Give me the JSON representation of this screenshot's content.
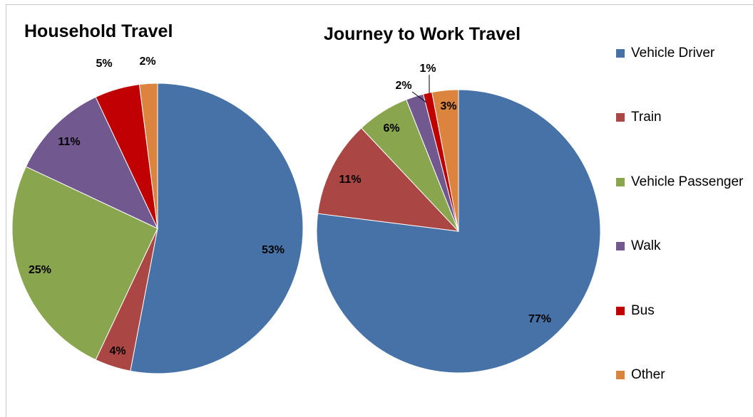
{
  "chart_data": [
    {
      "type": "pie",
      "title": "Household Travel",
      "categories": [
        "Vehicle Driver",
        "Train",
        "Vehicle Passenger",
        "Walk",
        "Bus",
        "Other"
      ],
      "values": [
        53,
        4,
        25,
        11,
        5,
        2
      ],
      "data_labels": [
        "53%",
        "4%",
        "25%",
        "11%",
        "5%",
        "2%"
      ]
    },
    {
      "type": "pie",
      "title": "Journey to Work Travel",
      "categories": [
        "Vehicle Driver",
        "Train",
        "Vehicle Passenger",
        "Walk",
        "Bus",
        "Other"
      ],
      "values": [
        77,
        11,
        6,
        2,
        1,
        3
      ],
      "data_labels": [
        "77%",
        "11%",
        "6%",
        "2%",
        "1%",
        "3%"
      ]
    }
  ],
  "legend": {
    "placement": "right",
    "items": [
      {
        "label": "Vehicle Driver",
        "color": "#4672A8"
      },
      {
        "label": "Train",
        "color": "#AA4643"
      },
      {
        "label": "Vehicle Passenger",
        "color": "#89A54E"
      },
      {
        "label": "Walk",
        "color": "#71588F"
      },
      {
        "label": "Bus",
        "color": "#C00000"
      },
      {
        "label": "Other",
        "color": "#DB843D"
      }
    ]
  }
}
